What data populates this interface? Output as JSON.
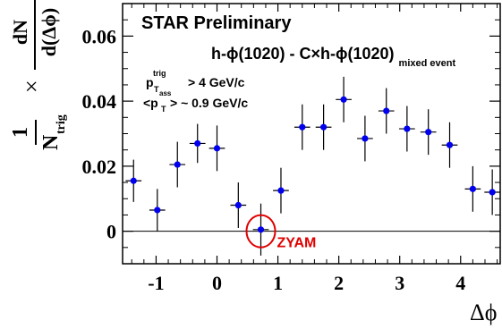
{
  "chart_data": {
    "type": "scatter",
    "title": "STAR Preliminary",
    "subtitle_main": "h-ϕ(1020) - C×h-ϕ(1020)",
    "subtitle_sub": "mixed event",
    "xlabel": "Δϕ",
    "ylabel": {
      "prefix": "1",
      "denominator": "N",
      "denominator_sub": "trig",
      "times": "×",
      "frac_num": "dN",
      "frac_den": "d(Δϕ)"
    },
    "cuts": [
      {
        "main": "p",
        "sub": "T",
        "sub2": "ass",
        "sup": "trig",
        "rest": "> 4 GeV/c"
      },
      {
        "main": "<p",
        "sub": "T",
        "rest": "> ~ 0.9 GeV/c"
      }
    ],
    "annotation": {
      "text": "ZYAM",
      "x": 0.72,
      "y": 0.0,
      "color": "#e00000"
    },
    "xlim": [
      -1.55,
      4.65
    ],
    "ylim": [
      -0.01,
      0.07
    ],
    "x_ticks": [
      -1,
      0,
      1,
      2,
      3,
      4
    ],
    "x_tick_labels": [
      "-1",
      "0",
      "1",
      "2",
      "3",
      "4"
    ],
    "y_ticks": [
      0,
      0.02,
      0.04,
      0.06
    ],
    "y_tick_labels": [
      "0",
      "0.02",
      "0.04",
      "0.06"
    ],
    "zero_line": true,
    "marker_color": "#0000ee",
    "x_bin_half_width": 0.13,
    "points": [
      {
        "x": -1.37,
        "y": 0.0155,
        "err": 0.0065
      },
      {
        "x": -0.98,
        "y": 0.0065,
        "err": 0.0065
      },
      {
        "x": -0.65,
        "y": 0.0205,
        "err": 0.007
      },
      {
        "x": -0.32,
        "y": 0.027,
        "err": 0.006
      },
      {
        "x": 0.0,
        "y": 0.0255,
        "err": 0.007
      },
      {
        "x": 0.35,
        "y": 0.008,
        "err": 0.007
      },
      {
        "x": 0.72,
        "y": 0.0005,
        "err": 0.008
      },
      {
        "x": 1.05,
        "y": 0.0125,
        "err": 0.007
      },
      {
        "x": 1.4,
        "y": 0.032,
        "err": 0.007
      },
      {
        "x": 1.75,
        "y": 0.032,
        "err": 0.007
      },
      {
        "x": 2.08,
        "y": 0.0405,
        "err": 0.007
      },
      {
        "x": 2.43,
        "y": 0.0285,
        "err": 0.007
      },
      {
        "x": 2.78,
        "y": 0.037,
        "err": 0.007
      },
      {
        "x": 3.12,
        "y": 0.0315,
        "err": 0.007
      },
      {
        "x": 3.47,
        "y": 0.0305,
        "err": 0.007
      },
      {
        "x": 3.82,
        "y": 0.0265,
        "err": 0.007
      },
      {
        "x": 4.2,
        "y": 0.013,
        "err": 0.007
      },
      {
        "x": 4.52,
        "y": 0.012,
        "err": 0.007
      }
    ]
  }
}
